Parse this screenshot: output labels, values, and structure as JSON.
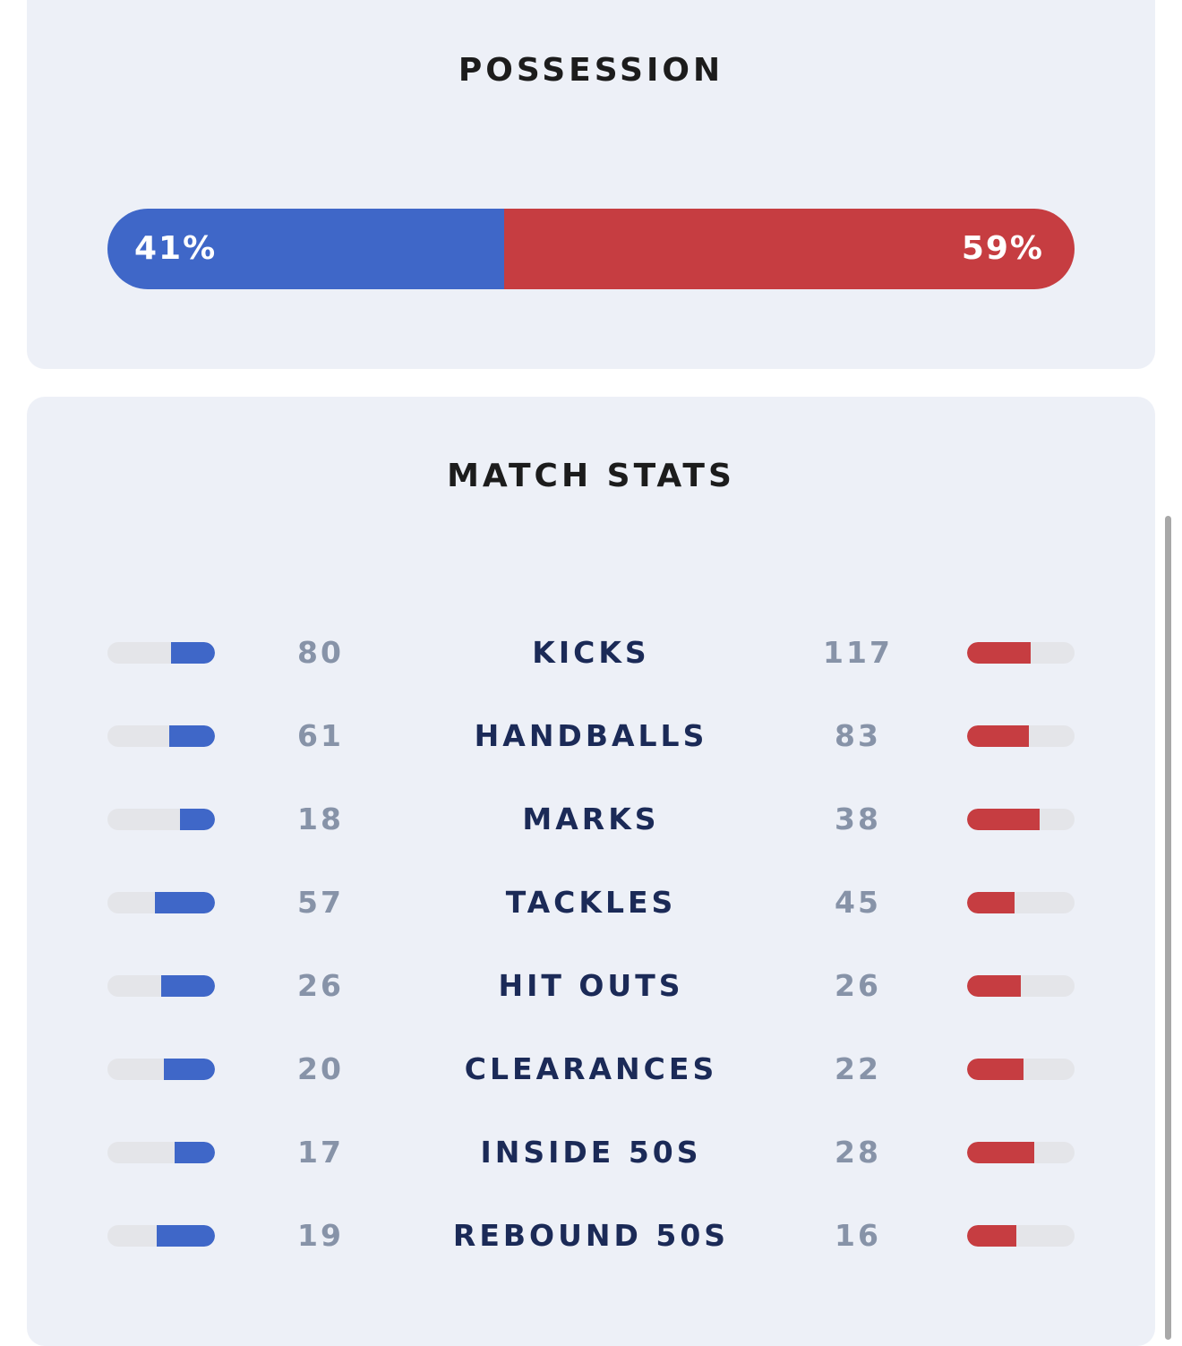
{
  "colors": {
    "home": "#3f67c8",
    "away": "#c63d41",
    "track": "#e4e5e9"
  },
  "possession": {
    "title": "POSSESSION",
    "home_percent": 41,
    "away_percent": 59,
    "home_label": "41%",
    "away_label": "59%"
  },
  "match_stats": {
    "title": "MATCH STATS",
    "rows": [
      {
        "label": "KICKS",
        "home": "80",
        "away": "117"
      },
      {
        "label": "HANDBALLS",
        "home": "61",
        "away": "83"
      },
      {
        "label": "MARKS",
        "home": "18",
        "away": "38"
      },
      {
        "label": "TACKLES",
        "home": "57",
        "away": "45"
      },
      {
        "label": "HIT OUTS",
        "home": "26",
        "away": "26"
      },
      {
        "label": "CLEARANCES",
        "home": "20",
        "away": "22"
      },
      {
        "label": "INSIDE 50S",
        "home": "17",
        "away": "28"
      },
      {
        "label": "REBOUND 50S",
        "home": "19",
        "away": "16"
      }
    ]
  }
}
